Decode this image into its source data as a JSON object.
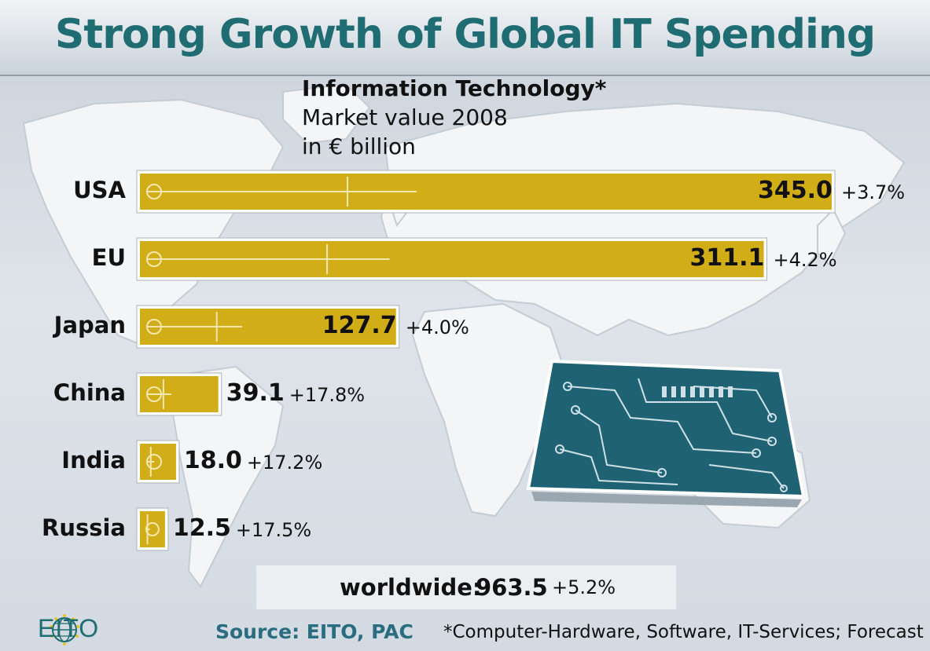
{
  "header": {
    "title": "Strong Growth of Global IT Spending"
  },
  "subtitle": {
    "line1": "Information Technology*",
    "line2": "Market value 2008",
    "line3": "in € billion"
  },
  "chart_data": {
    "type": "bar",
    "orientation": "horizontal",
    "title": "Information Technology*",
    "subtitle": "Market value 2008",
    "unit": "in € billion",
    "categories": [
      "USA",
      "EU",
      "Japan",
      "China",
      "India",
      "Russia"
    ],
    "values": [
      345.0,
      311.1,
      127.7,
      39.1,
      18.0,
      12.5
    ],
    "value_labels": [
      "345.0",
      "311.1",
      "127.7",
      "39.1",
      "18.0",
      "12.5"
    ],
    "growth_labels": [
      "+3.7%",
      "+4.2%",
      "+4.0%",
      "+17.8%",
      "+17.2%",
      "+17.5%"
    ],
    "bar_color": "#d1ad18",
    "grid": false
  },
  "worldwide": {
    "label": "worldwide:",
    "value": "963.5",
    "growth": "+5.2%"
  },
  "footer": {
    "logo_text": "EITO",
    "logo_icon": "globe-stars-icon",
    "source": "Source: EITO, PAC",
    "footnote": "*Computer-Hardware, Software, IT-Services; Forecast"
  },
  "colors": {
    "title": "#1f6d72",
    "bar": "#d1ad18",
    "board": "#1e6274",
    "map_land": "#f4f5f7",
    "map_sea": "#d6dce3"
  }
}
